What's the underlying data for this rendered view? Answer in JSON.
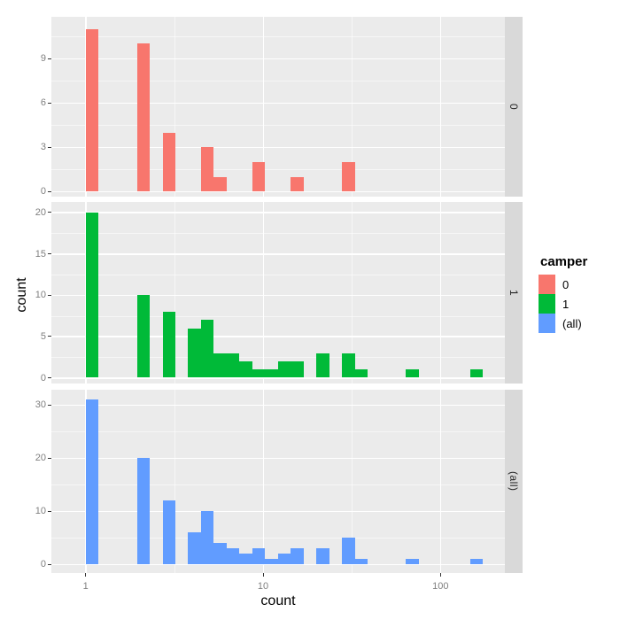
{
  "chart_data": {
    "type": "bar",
    "subtype": "faceted-histogram-log-x",
    "title": "",
    "xlabel": "count",
    "ylabel": "count",
    "x_scale": "log10",
    "x_ticks": [
      1,
      10,
      100
    ],
    "x_minor_breaks_log10": [
      0.5,
      1.5
    ],
    "bin_width_log10": 0.0723,
    "grid": true,
    "colors": {
      "panel_bg": "#EBEBEB",
      "strip_bg": "#D9D9D9",
      "gridline": "#FFFFFF",
      "tick_text": "#7f7f7f",
      "tick_mark": "#333333"
    },
    "legend": {
      "title": "camper",
      "position": "right",
      "entries": [
        {
          "label": "0",
          "color": "#F8766D"
        },
        {
          "label": "1",
          "color": "#00BA38"
        },
        {
          "label": "(all)",
          "color": "#619CFF"
        }
      ]
    },
    "facets": [
      {
        "strip_label": "0",
        "color": "#F8766D",
        "y_ticks": [
          0,
          3,
          6,
          9
        ],
        "bins": [
          {
            "k": 0,
            "x": 1.09,
            "count": 11
          },
          {
            "k": 4,
            "x": 2.11,
            "count": 10
          },
          {
            "k": 6,
            "x": 2.95,
            "count": 4
          },
          {
            "k": 9,
            "x": 4.87,
            "count": 3
          },
          {
            "k": 10,
            "x": 5.74,
            "count": 1
          },
          {
            "k": 13,
            "x": 9.47,
            "count": 2
          },
          {
            "k": 16,
            "x": 15.6,
            "count": 1
          },
          {
            "k": 20,
            "x": 30.3,
            "count": 2
          }
        ]
      },
      {
        "strip_label": "1",
        "color": "#00BA38",
        "y_ticks": [
          0,
          5,
          10,
          15,
          20
        ],
        "bins": [
          {
            "k": 0,
            "x": 1.09,
            "count": 20
          },
          {
            "k": 4,
            "x": 2.11,
            "count": 10
          },
          {
            "k": 6,
            "x": 2.95,
            "count": 8
          },
          {
            "k": 8,
            "x": 4.12,
            "count": 6
          },
          {
            "k": 9,
            "x": 4.87,
            "count": 7
          },
          {
            "k": 10,
            "x": 5.74,
            "count": 3
          },
          {
            "k": 11,
            "x": 6.79,
            "count": 3
          },
          {
            "k": 12,
            "x": 8.02,
            "count": 2
          },
          {
            "k": 13,
            "x": 9.47,
            "count": 1
          },
          {
            "k": 14,
            "x": 11.2,
            "count": 1
          },
          {
            "k": 15,
            "x": 13.2,
            "count": 2
          },
          {
            "k": 16,
            "x": 15.6,
            "count": 2
          },
          {
            "k": 18,
            "x": 21.7,
            "count": 3
          },
          {
            "k": 20,
            "x": 30.3,
            "count": 3
          },
          {
            "k": 21,
            "x": 35.8,
            "count": 1
          },
          {
            "k": 25,
            "x": 69.8,
            "count": 1
          },
          {
            "k": 30,
            "x": 160,
            "count": 1
          }
        ]
      },
      {
        "strip_label": "(all)",
        "color": "#619CFF",
        "y_ticks": [
          0,
          10,
          20,
          30
        ],
        "bins": [
          {
            "k": 0,
            "x": 1.09,
            "count": 31
          },
          {
            "k": 4,
            "x": 2.11,
            "count": 20
          },
          {
            "k": 6,
            "x": 2.95,
            "count": 12
          },
          {
            "k": 8,
            "x": 4.12,
            "count": 6
          },
          {
            "k": 9,
            "x": 4.87,
            "count": 10
          },
          {
            "k": 10,
            "x": 5.74,
            "count": 4
          },
          {
            "k": 11,
            "x": 6.79,
            "count": 3
          },
          {
            "k": 12,
            "x": 8.02,
            "count": 2
          },
          {
            "k": 13,
            "x": 9.47,
            "count": 3
          },
          {
            "k": 14,
            "x": 11.2,
            "count": 1
          },
          {
            "k": 15,
            "x": 13.2,
            "count": 2
          },
          {
            "k": 16,
            "x": 15.6,
            "count": 3
          },
          {
            "k": 18,
            "x": 21.7,
            "count": 3
          },
          {
            "k": 20,
            "x": 30.3,
            "count": 5
          },
          {
            "k": 21,
            "x": 35.8,
            "count": 1
          },
          {
            "k": 25,
            "x": 69.8,
            "count": 1
          },
          {
            "k": 30,
            "x": 160,
            "count": 1
          }
        ]
      }
    ]
  }
}
